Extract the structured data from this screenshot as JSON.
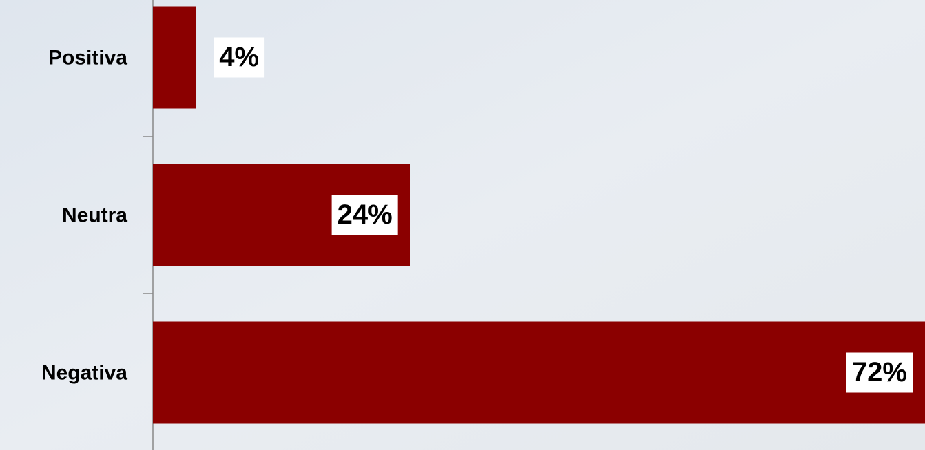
{
  "chart_data": {
    "type": "bar",
    "orientation": "horizontal",
    "categories": [
      "Positiva",
      "Neutra",
      "Negativa"
    ],
    "values": [
      4,
      24,
      72
    ],
    "value_labels": [
      "4%",
      "24%",
      "72%"
    ],
    "color": "#8b0000"
  }
}
